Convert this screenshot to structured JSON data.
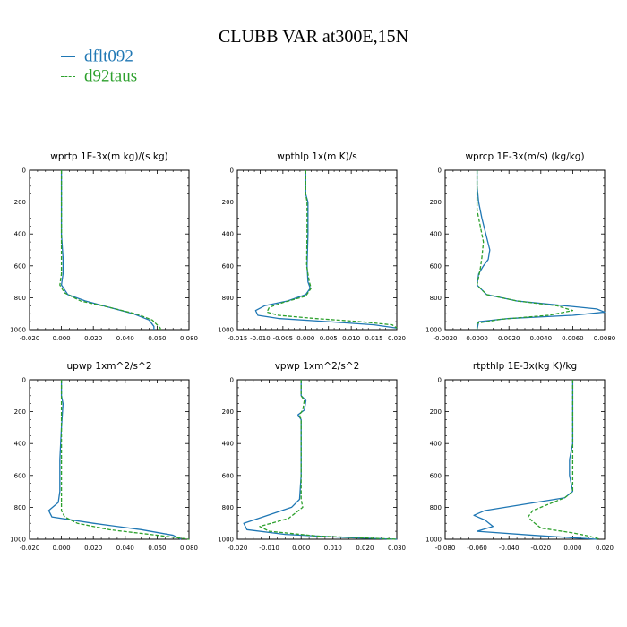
{
  "title": "CLUBB VAR at300E,15N",
  "legend": [
    {
      "name": "dflt092",
      "color": "#1f77b4"
    },
    {
      "name": "d92taus",
      "color": "#2ca02c"
    }
  ],
  "chart_data": [
    {
      "type": "line",
      "title": "wprtp   1E-3x(m kg)/(s kg)",
      "xlim": [
        -0.02,
        0.08
      ],
      "xticks": [
        "-0.020",
        "0.000",
        "0.020",
        "0.040",
        "0.060",
        "0.080"
      ],
      "ylim": [
        1000,
        0
      ],
      "yticks": [
        "0",
        "200",
        "400",
        "600",
        "800",
        "1000"
      ],
      "series": [
        {
          "name": "dflt092",
          "points": [
            [
              0.0,
              0
            ],
            [
              0.0,
              200
            ],
            [
              0.0,
              400
            ],
            [
              0.001,
              550
            ],
            [
              0.001,
              650
            ],
            [
              0.0,
              720
            ],
            [
              0.004,
              780
            ],
            [
              0.015,
              820
            ],
            [
              0.03,
              860
            ],
            [
              0.045,
              900
            ],
            [
              0.055,
              940
            ],
            [
              0.058,
              980
            ],
            [
              0.058,
              1000
            ]
          ]
        },
        {
          "name": "d92taus",
          "points": [
            [
              0.0,
              0
            ],
            [
              0.0,
              200
            ],
            [
              0.0,
              400
            ],
            [
              0.0,
              550
            ],
            [
              0.0,
              650
            ],
            [
              -0.001,
              720
            ],
            [
              0.002,
              770
            ],
            [
              0.012,
              820
            ],
            [
              0.03,
              860
            ],
            [
              0.048,
              905
            ],
            [
              0.057,
              940
            ],
            [
              0.062,
              990
            ],
            [
              0.062,
              1000
            ]
          ]
        }
      ]
    },
    {
      "type": "line",
      "title": "wpthlp   1x(m K)/s",
      "xlim": [
        -0.015,
        0.02
      ],
      "xticks": [
        "-0.015",
        "-0.010",
        "-0.005",
        "0.000",
        "0.005",
        "0.010",
        "0.015",
        "0.020"
      ],
      "ylim": [
        1000,
        0
      ],
      "yticks": [
        "0",
        "200",
        "400",
        "600",
        "800",
        "1000"
      ],
      "series": [
        {
          "name": "dflt092",
          "points": [
            [
              0.0,
              0
            ],
            [
              0.0,
              150
            ],
            [
              0.0005,
              200
            ],
            [
              0.0005,
              400
            ],
            [
              0.0003,
              600
            ],
            [
              0.0005,
              700
            ],
            [
              0.001,
              740
            ],
            [
              0.0,
              780
            ],
            [
              -0.004,
              820
            ],
            [
              -0.009,
              850
            ],
            [
              -0.011,
              880
            ],
            [
              -0.0105,
              910
            ],
            [
              -0.006,
              930
            ],
            [
              0.005,
              950
            ],
            [
              0.015,
              970
            ],
            [
              0.02,
              990
            ]
          ]
        },
        {
          "name": "d92taus",
          "points": [
            [
              0.0,
              0
            ],
            [
              0.0,
              150
            ],
            [
              0.0003,
              200
            ],
            [
              0.0003,
              400
            ],
            [
              0.0002,
              600
            ],
            [
              0.0008,
              700
            ],
            [
              0.0012,
              740
            ],
            [
              0.0,
              790
            ],
            [
              -0.005,
              830
            ],
            [
              -0.008,
              860
            ],
            [
              -0.0085,
              890
            ],
            [
              -0.006,
              910
            ],
            [
              0.002,
              930
            ],
            [
              0.012,
              950
            ],
            [
              0.019,
              970
            ],
            [
              0.02,
              990
            ]
          ]
        }
      ]
    },
    {
      "type": "line",
      "title": "wprcp   1E-3x(m/s) (kg/kg)",
      "xlim": [
        -0.002,
        0.008
      ],
      "xticks": [
        "-0.0020",
        "0.0000",
        "0.0020",
        "0.0040",
        "0.0060",
        "0.0080"
      ],
      "ylim": [
        1000,
        0
      ],
      "yticks": [
        "0",
        "200",
        "400",
        "600",
        "800",
        "1000"
      ],
      "series": [
        {
          "name": "dflt092",
          "points": [
            [
              0.0,
              0
            ],
            [
              0.0,
              100
            ],
            [
              0.0001,
              200
            ],
            [
              0.0003,
              300
            ],
            [
              0.0006,
              420
            ],
            [
              0.0008,
              500
            ],
            [
              0.0007,
              560
            ],
            [
              0.0004,
              600
            ],
            [
              0.0001,
              650
            ],
            [
              0.0,
              720
            ],
            [
              0.0006,
              780
            ],
            [
              0.0025,
              820
            ],
            [
              0.0055,
              850
            ],
            [
              0.0075,
              870
            ],
            [
              0.008,
              890
            ],
            [
              0.006,
              910
            ],
            [
              0.002,
              930
            ],
            [
              0.0001,
              950
            ],
            [
              0.0,
              1000
            ]
          ]
        },
        {
          "name": "d92taus",
          "points": [
            [
              0.0,
              0
            ],
            [
              0.0,
              150
            ],
            [
              0.0,
              250
            ],
            [
              0.0002,
              350
            ],
            [
              0.0004,
              450
            ],
            [
              0.0003,
              550
            ],
            [
              0.0002,
              620
            ],
            [
              0.0,
              720
            ],
            [
              0.0006,
              780
            ],
            [
              0.0025,
              820
            ],
            [
              0.005,
              850
            ],
            [
              0.006,
              880
            ],
            [
              0.0045,
              910
            ],
            [
              0.0015,
              935
            ],
            [
              0.0,
              960
            ],
            [
              0.0,
              1000
            ]
          ]
        }
      ]
    },
    {
      "type": "line",
      "title": "upwp   1xm^2/s^2",
      "xlim": [
        -0.02,
        0.08
      ],
      "xticks": [
        "-0.020",
        "0.000",
        "0.020",
        "0.040",
        "0.060",
        "0.080"
      ],
      "ylim": [
        1000,
        0
      ],
      "yticks": [
        "0",
        "200",
        "400",
        "600",
        "800",
        "1000"
      ],
      "series": [
        {
          "name": "dflt092",
          "points": [
            [
              0.0,
              0
            ],
            [
              0.0,
              100
            ],
            [
              0.001,
              150
            ],
            [
              0.0,
              300
            ],
            [
              -0.001,
              500
            ],
            [
              -0.001,
              700
            ],
            [
              -0.002,
              770
            ],
            [
              -0.008,
              820
            ],
            [
              -0.006,
              860
            ],
            [
              0.02,
              900
            ],
            [
              0.05,
              940
            ],
            [
              0.07,
              975
            ],
            [
              0.075,
              1000
            ]
          ]
        },
        {
          "name": "d92taus",
          "points": [
            [
              0.0,
              0
            ],
            [
              0.0,
              100
            ],
            [
              0.0,
              150
            ],
            [
              0.0,
              300
            ],
            [
              0.0,
              500
            ],
            [
              0.0,
              700
            ],
            [
              0.0,
              760
            ],
            [
              0.0,
              820
            ],
            [
              0.002,
              860
            ],
            [
              0.01,
              900
            ],
            [
              0.03,
              940
            ],
            [
              0.06,
              975
            ],
            [
              0.08,
              1000
            ]
          ]
        }
      ]
    },
    {
      "type": "line",
      "title": "vpwp   1xm^2/s^2",
      "xlim": [
        -0.02,
        0.03
      ],
      "xticks": [
        "-0.020",
        "-0.010",
        "0.000",
        "0.010",
        "0.020",
        "0.030"
      ],
      "ylim": [
        1000,
        0
      ],
      "yticks": [
        "0",
        "200",
        "400",
        "600",
        "800",
        "1000"
      ],
      "series": [
        {
          "name": "dflt092",
          "points": [
            [
              0.0,
              0
            ],
            [
              0.0,
              100
            ],
            [
              0.0015,
              130
            ],
            [
              0.001,
              190
            ],
            [
              -0.001,
              220
            ],
            [
              0.0,
              250
            ],
            [
              0.0,
              400
            ],
            [
              0.0,
              600
            ],
            [
              -0.0005,
              750
            ],
            [
              -0.003,
              800
            ],
            [
              -0.012,
              860
            ],
            [
              -0.018,
              900
            ],
            [
              -0.017,
              940
            ],
            [
              -0.005,
              970
            ],
            [
              0.015,
              990
            ],
            [
              0.03,
              1000
            ]
          ]
        },
        {
          "name": "d92taus",
          "points": [
            [
              0.0,
              0
            ],
            [
              0.0,
              100
            ],
            [
              0.001,
              130
            ],
            [
              0.0005,
              190
            ],
            [
              -0.0005,
              220
            ],
            [
              0.0,
              250
            ],
            [
              0.0,
              400
            ],
            [
              0.0,
              600
            ],
            [
              0.0,
              750
            ],
            [
              0.0005,
              800
            ],
            [
              -0.004,
              870
            ],
            [
              -0.013,
              920
            ],
            [
              -0.01,
              950
            ],
            [
              0.005,
              980
            ],
            [
              0.03,
              1000
            ]
          ]
        }
      ]
    },
    {
      "type": "line",
      "title": "rtpthlp   1E-3x(kg K)/kg",
      "xlim": [
        -0.08,
        0.02
      ],
      "xticks": [
        "-0.080",
        "-0.060",
        "-0.040",
        "-0.020",
        "0.000",
        "0.020"
      ],
      "ylim": [
        1000,
        0
      ],
      "yticks": [
        "0",
        "200",
        "400",
        "600",
        "800",
        "1000"
      ],
      "series": [
        {
          "name": "dflt092",
          "points": [
            [
              0.0,
              0
            ],
            [
              0.0,
              200
            ],
            [
              0.0,
              400
            ],
            [
              -0.002,
              500
            ],
            [
              -0.002,
              600
            ],
            [
              0.0,
              700
            ],
            [
              -0.005,
              740
            ],
            [
              -0.03,
              780
            ],
            [
              -0.055,
              820
            ],
            [
              -0.062,
              850
            ],
            [
              -0.055,
              880
            ],
            [
              -0.05,
              920
            ],
            [
              -0.06,
              950
            ],
            [
              -0.025,
              975
            ],
            [
              0.015,
              1000
            ]
          ]
        },
        {
          "name": "d92taus",
          "points": [
            [
              0.0,
              0
            ],
            [
              0.0,
              200
            ],
            [
              0.0,
              400
            ],
            [
              0.0,
              500
            ],
            [
              0.0,
              600
            ],
            [
              0.0,
              700
            ],
            [
              -0.005,
              740
            ],
            [
              -0.015,
              780
            ],
            [
              -0.025,
              820
            ],
            [
              -0.028,
              860
            ],
            [
              -0.025,
              890
            ],
            [
              -0.02,
              930
            ],
            [
              0.0,
              960
            ],
            [
              0.01,
              980
            ],
            [
              0.017,
              1000
            ]
          ]
        }
      ]
    }
  ]
}
